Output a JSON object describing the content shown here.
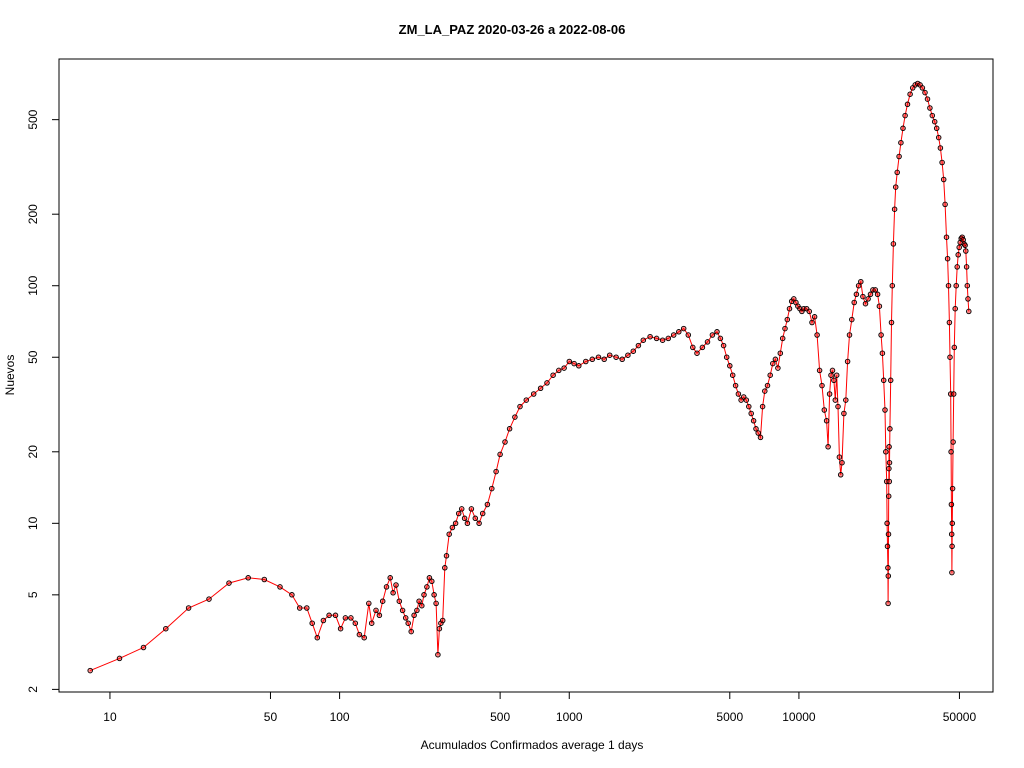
{
  "chart_data": {
    "type": "scatter",
    "title": "ZM_LA_PAZ 2020-03-26 a 2022-08-06",
    "xlabel": "Acumulados Confirmados average  1  days",
    "ylabel": "Nuevos",
    "x_scale": "log",
    "y_scale": "log",
    "xlim": [
      6,
      70000
    ],
    "ylim": [
      1.95,
      900
    ],
    "x_ticks": [
      10,
      50,
      100,
      500,
      1000,
      5000,
      10000,
      50000
    ],
    "x_tick_labels": [
      "10",
      "50",
      "100",
      "500",
      "1000",
      "5000",
      "10000",
      "50000"
    ],
    "y_ticks": [
      2,
      5,
      10,
      20,
      50,
      100,
      200,
      500
    ],
    "y_tick_labels": [
      "2",
      "5",
      "10",
      "20",
      "50",
      "100",
      "200",
      "500"
    ],
    "series": [
      {
        "line_color": "#ff0000",
        "point_fill": "#ff0000",
        "point_edge": "#000000",
        "points": [
          [
            8.2,
            2.4
          ],
          [
            11,
            2.7
          ],
          [
            14,
            3.0
          ],
          [
            17.5,
            3.6
          ],
          [
            22,
            4.4
          ],
          [
            27,
            4.8
          ],
          [
            33,
            5.6
          ],
          [
            40,
            5.9
          ],
          [
            47,
            5.8
          ],
          [
            55,
            5.4
          ],
          [
            62,
            5.0
          ],
          [
            67,
            4.4
          ],
          [
            72,
            4.4
          ],
          [
            76,
            3.8
          ],
          [
            80,
            3.3
          ],
          [
            85,
            3.9
          ],
          [
            90,
            4.1
          ],
          [
            96,
            4.1
          ],
          [
            101,
            3.6
          ],
          [
            106,
            4.0
          ],
          [
            112,
            4.0
          ],
          [
            117,
            3.8
          ],
          [
            122,
            3.4
          ],
          [
            128,
            3.3
          ],
          [
            134,
            4.6
          ],
          [
            138,
            3.8
          ],
          [
            144,
            4.3
          ],
          [
            149,
            4.1
          ],
          [
            154,
            4.7
          ],
          [
            160,
            5.4
          ],
          [
            166,
            5.9
          ],
          [
            171,
            5.1
          ],
          [
            176,
            5.5
          ],
          [
            182,
            4.7
          ],
          [
            188,
            4.3
          ],
          [
            194,
            4.0
          ],
          [
            199,
            3.8
          ],
          [
            205,
            3.5
          ],
          [
            211,
            4.1
          ],
          [
            217,
            4.3
          ],
          [
            222,
            4.7
          ],
          [
            228,
            4.5
          ],
          [
            233,
            5.0
          ],
          [
            240,
            5.4
          ],
          [
            246,
            5.9
          ],
          [
            252,
            5.7
          ],
          [
            258,
            5.0
          ],
          [
            263,
            4.6
          ],
          [
            268,
            2.8
          ],
          [
            272,
            3.6
          ],
          [
            276,
            3.8
          ],
          [
            281,
            3.9
          ],
          [
            287,
            6.5
          ],
          [
            292,
            7.3
          ],
          [
            300,
            9.0
          ],
          [
            310,
            9.6
          ],
          [
            320,
            10.0
          ],
          [
            330,
            11.0
          ],
          [
            340,
            11.5
          ],
          [
            350,
            10.5
          ],
          [
            360,
            10.0
          ],
          [
            375,
            11.5
          ],
          [
            390,
            10.5
          ],
          [
            405,
            10.0
          ],
          [
            420,
            11.0
          ],
          [
            440,
            12.0
          ],
          [
            460,
            14.0
          ],
          [
            480,
            16.5
          ],
          [
            500,
            19.5
          ],
          [
            525,
            22.0
          ],
          [
            550,
            25.0
          ],
          [
            580,
            28.0
          ],
          [
            610,
            31.0
          ],
          [
            650,
            33.0
          ],
          [
            700,
            35.0
          ],
          [
            750,
            37.0
          ],
          [
            800,
            39.0
          ],
          [
            850,
            42.0
          ],
          [
            900,
            44.0
          ],
          [
            950,
            45.0
          ],
          [
            1000,
            48.0
          ],
          [
            1050,
            47.0
          ],
          [
            1100,
            46.0
          ],
          [
            1180,
            48.0
          ],
          [
            1260,
            49.0
          ],
          [
            1340,
            50.0
          ],
          [
            1420,
            49.0
          ],
          [
            1500,
            51.0
          ],
          [
            1600,
            50.0
          ],
          [
            1700,
            49.0
          ],
          [
            1800,
            51.0
          ],
          [
            1900,
            53.0
          ],
          [
            2000,
            56.0
          ],
          [
            2100,
            59.0
          ],
          [
            2250,
            61.0
          ],
          [
            2400,
            60.0
          ],
          [
            2550,
            59.0
          ],
          [
            2700,
            60.0
          ],
          [
            2850,
            62.0
          ],
          [
            3000,
            64.0
          ],
          [
            3150,
            66.0
          ],
          [
            3300,
            62.0
          ],
          [
            3450,
            55.0
          ],
          [
            3600,
            52.0
          ],
          [
            3800,
            55.0
          ],
          [
            4000,
            58.0
          ],
          [
            4200,
            62.0
          ],
          [
            4400,
            64.0
          ],
          [
            4550,
            60.0
          ],
          [
            4700,
            56.0
          ],
          [
            4850,
            50.0
          ],
          [
            5000,
            46.0
          ],
          [
            5150,
            42.0
          ],
          [
            5300,
            38.0
          ],
          [
            5450,
            35.0
          ],
          [
            5600,
            33.0
          ],
          [
            5750,
            34.0
          ],
          [
            5900,
            33.0
          ],
          [
            6050,
            31.0
          ],
          [
            6200,
            29.0
          ],
          [
            6350,
            27.0
          ],
          [
            6500,
            25.0
          ],
          [
            6650,
            24.0
          ],
          [
            6800,
            23.0
          ],
          [
            6950,
            31.0
          ],
          [
            7100,
            36.0
          ],
          [
            7300,
            38.0
          ],
          [
            7500,
            42.0
          ],
          [
            7700,
            47.0
          ],
          [
            7900,
            49.0
          ],
          [
            8100,
            45.0
          ],
          [
            8300,
            52.0
          ],
          [
            8500,
            60.0
          ],
          [
            8700,
            66.0
          ],
          [
            8900,
            72.0
          ],
          [
            9100,
            80.0
          ],
          [
            9300,
            86.0
          ],
          [
            9500,
            88.0
          ],
          [
            9700,
            85.0
          ],
          [
            9900,
            82.0
          ],
          [
            10100,
            80.0
          ],
          [
            10300,
            78.0
          ],
          [
            10500,
            80.0
          ],
          [
            10800,
            80.0
          ],
          [
            11100,
            78.0
          ],
          [
            11400,
            70.0
          ],
          [
            11700,
            74.0
          ],
          [
            12000,
            62.0
          ],
          [
            12300,
            44.0
          ],
          [
            12600,
            38.0
          ],
          [
            12900,
            30.0
          ],
          [
            13200,
            27.0
          ],
          [
            13400,
            21.0
          ],
          [
            13600,
            35.0
          ],
          [
            13800,
            42.0
          ],
          [
            14000,
            44.0
          ],
          [
            14200,
            40.0
          ],
          [
            14400,
            33.0
          ],
          [
            14600,
            42.0
          ],
          [
            14800,
            31.0
          ],
          [
            15000,
            19.0
          ],
          [
            15200,
            16.0
          ],
          [
            15400,
            18.0
          ],
          [
            15700,
            29.0
          ],
          [
            16000,
            33.0
          ],
          [
            16300,
            48.0
          ],
          [
            16600,
            62.0
          ],
          [
            17000,
            72.0
          ],
          [
            17400,
            85.0
          ],
          [
            17800,
            92.0
          ],
          [
            18200,
            100.0
          ],
          [
            18600,
            104.0
          ],
          [
            19000,
            90.0
          ],
          [
            19500,
            84.0
          ],
          [
            20000,
            88.0
          ],
          [
            20500,
            92.0
          ],
          [
            21000,
            96.0
          ],
          [
            21500,
            96.0
          ],
          [
            22000,
            92.0
          ],
          [
            22400,
            82.0
          ],
          [
            22800,
            62.0
          ],
          [
            23100,
            52.0
          ],
          [
            23400,
            40.0
          ],
          [
            23700,
            30.0
          ],
          [
            23900,
            20.0
          ],
          [
            24100,
            15.0
          ],
          [
            24200,
            10.0
          ],
          [
            24300,
            8.0
          ],
          [
            24400,
            6.5
          ],
          [
            24450,
            4.6
          ],
          [
            24500,
            6.0
          ],
          [
            24550,
            9.0
          ],
          [
            24600,
            13.0
          ],
          [
            24650,
            17.0
          ],
          [
            24700,
            21.0
          ],
          [
            24750,
            15.0
          ],
          [
            24800,
            18.0
          ],
          [
            24900,
            25.0
          ],
          [
            25100,
            40.0
          ],
          [
            25300,
            70.0
          ],
          [
            25500,
            100.0
          ],
          [
            25800,
            150.0
          ],
          [
            26100,
            210.0
          ],
          [
            26400,
            260.0
          ],
          [
            26800,
            300.0
          ],
          [
            27300,
            350.0
          ],
          [
            27800,
            400.0
          ],
          [
            28400,
            460.0
          ],
          [
            29000,
            520.0
          ],
          [
            29700,
            580.0
          ],
          [
            30500,
            640.0
          ],
          [
            31300,
            680.0
          ],
          [
            32100,
            700.0
          ],
          [
            32900,
            710.0
          ],
          [
            33700,
            700.0
          ],
          [
            34500,
            680.0
          ],
          [
            35400,
            650.0
          ],
          [
            36300,
            610.0
          ],
          [
            37200,
            560.0
          ],
          [
            38100,
            520.0
          ],
          [
            39000,
            490.0
          ],
          [
            39800,
            460.0
          ],
          [
            40600,
            420.0
          ],
          [
            41300,
            380.0
          ],
          [
            42000,
            330.0
          ],
          [
            42700,
            280.0
          ],
          [
            43300,
            220.0
          ],
          [
            43900,
            160.0
          ],
          [
            44400,
            130.0
          ],
          [
            44800,
            100.0
          ],
          [
            45200,
            70.0
          ],
          [
            45500,
            50.0
          ],
          [
            45800,
            35.0
          ],
          [
            46000,
            20.0
          ],
          [
            46150,
            12.0
          ],
          [
            46250,
            9.0
          ],
          [
            46350,
            6.2
          ],
          [
            46450,
            8.0
          ],
          [
            46550,
            10.0
          ],
          [
            46700,
            14.0
          ],
          [
            46900,
            22.0
          ],
          [
            47200,
            35.0
          ],
          [
            47500,
            55.0
          ],
          [
            47900,
            80.0
          ],
          [
            48400,
            100.0
          ],
          [
            48900,
            120.0
          ],
          [
            49400,
            135.0
          ],
          [
            49900,
            145.0
          ],
          [
            50400,
            152.0
          ],
          [
            50900,
            158.0
          ],
          [
            51400,
            160.0
          ],
          [
            51900,
            156.0
          ],
          [
            52400,
            150.0
          ],
          [
            52900,
            148.0
          ],
          [
            53300,
            140.0
          ],
          [
            53700,
            120.0
          ],
          [
            54100,
            100.0
          ],
          [
            54500,
            88.0
          ],
          [
            54900,
            78.0
          ]
        ]
      }
    ]
  }
}
